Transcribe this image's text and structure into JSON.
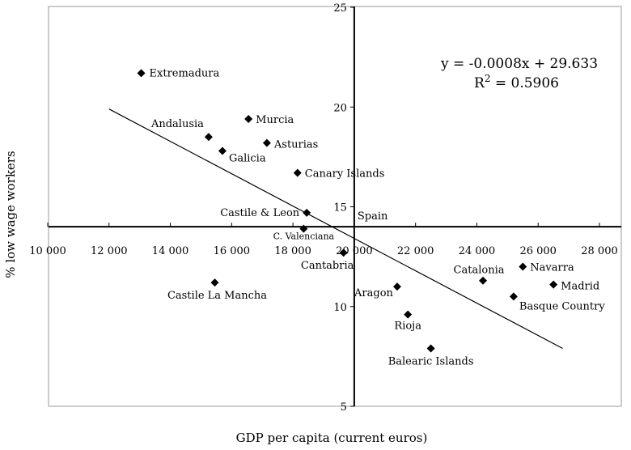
{
  "chart_data": {
    "type": "scatter",
    "title": "",
    "xlabel": "GDP per capita (current euros)",
    "ylabel": "% low wage workers",
    "xlim": [
      10000,
      28000
    ],
    "ylim": [
      5,
      25
    ],
    "x_ticks": [
      10000,
      12000,
      14000,
      16000,
      18000,
      20000,
      22000,
      24000,
      26000,
      28000
    ],
    "x_tick_labels": [
      "10 000",
      "12 000",
      "14 000",
      "16 000",
      "18 000",
      "20 000",
      "22 000",
      "24 000",
      "26 000",
      "28 000"
    ],
    "y_ticks": [
      5,
      10,
      15,
      20,
      25
    ],
    "y_tick_labels": [
      "5",
      "10",
      "15",
      "20",
      "25"
    ],
    "axes_cross": {
      "x": 20000,
      "y": 14
    },
    "grid": false,
    "points": [
      {
        "name": "Extremadura",
        "x": 13050,
        "y": 21.7
      },
      {
        "name": "Andalusia",
        "x": 15250,
        "y": 18.5
      },
      {
        "name": "Murcia",
        "x": 16550,
        "y": 19.4
      },
      {
        "name": "Galicia",
        "x": 15700,
        "y": 17.8
      },
      {
        "name": "Asturias",
        "x": 17150,
        "y": 18.2
      },
      {
        "name": "Canary Islands",
        "x": 18150,
        "y": 16.7
      },
      {
        "name": "Castile & Leon",
        "x": 18450,
        "y": 14.7
      },
      {
        "name": "Spain",
        "x": 20000,
        "y": 14.0
      },
      {
        "name": "C. Valenciana",
        "x": 18350,
        "y": 13.9
      },
      {
        "name": "Cantabria",
        "x": 19650,
        "y": 12.7
      },
      {
        "name": "Castile La Mancha",
        "x": 15450,
        "y": 11.2
      },
      {
        "name": "Aragon",
        "x": 21400,
        "y": 11.0
      },
      {
        "name": "Rioja",
        "x": 21750,
        "y": 9.6
      },
      {
        "name": "Balearic Islands",
        "x": 22500,
        "y": 7.9
      },
      {
        "name": "Catalonia",
        "x": 24200,
        "y": 11.3
      },
      {
        "name": "Navarra",
        "x": 25500,
        "y": 12.0
      },
      {
        "name": "Basque Country",
        "x": 25200,
        "y": 10.5
      },
      {
        "name": "Madrid",
        "x": 26500,
        "y": 11.1
      }
    ],
    "trendline": {
      "x": [
        12000,
        26800
      ],
      "y": [
        19.9,
        7.9
      ],
      "equation": "y = -0.0008x + 29.633",
      "r2_label": "R",
      "r2_sup": "2",
      "r2_value": " = 0.5906"
    }
  }
}
